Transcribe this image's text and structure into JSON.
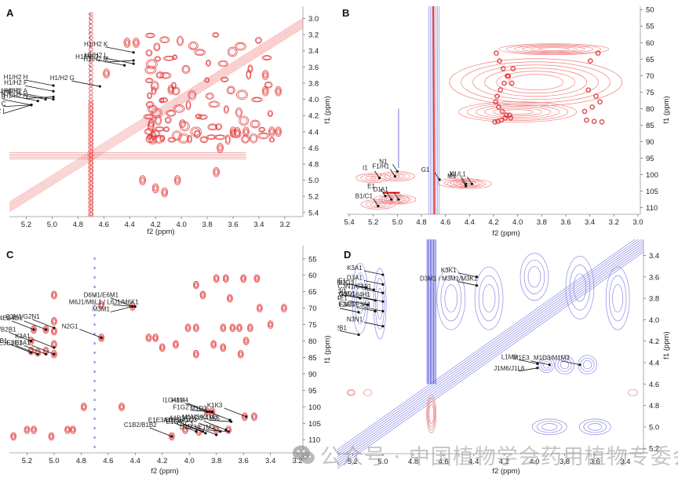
{
  "figure": {
    "panels": [
      {
        "id": "A",
        "label": "A",
        "xlabel": "f2 (ppm)",
        "ylabel": "f1 (ppm)",
        "xticks": [
          "5.2",
          "5.0",
          "4.8",
          "4.6",
          "4.4",
          "4.2",
          "4.0",
          "3.8",
          "3.6",
          "3.4",
          "3.2"
        ],
        "yticks": [
          "3.0",
          "3.2",
          "3.4",
          "3.6",
          "3.8",
          "4.0",
          "4.2",
          "4.4",
          "4.6",
          "4.8",
          "5.0",
          "5.2",
          "5.4"
        ],
        "xrange": [
          5.33,
          3.06
        ],
        "yrange": [
          2.85,
          5.45
        ],
        "annotations": [
          "H1/H2 K",
          "H1/H2 M",
          "H1/H2 L",
          "H1/H2 J",
          "H1/H2 H",
          "H1/H2 D",
          "H1/H2 F",
          "H1/H2 N",
          "H1/H2 E",
          "H1/H2 G",
          "H1/H2 A",
          "H1/H2 B",
          "H1/H2 C",
          "H1/H2  I"
        ]
      },
      {
        "id": "B",
        "label": "B",
        "xlabel": "f2 (ppm)",
        "ylabel": "f1 (ppm)",
        "xticks": [
          "5.4",
          "5.2",
          "5.0",
          "4.8",
          "4.6",
          "4.4",
          "4.2",
          "4.0",
          "3.8",
          "3.6",
          "3.4",
          "3.2",
          "3.0"
        ],
        "yticks": [
          "50",
          "55",
          "60",
          "65",
          "70",
          "75",
          "80",
          "85",
          "90",
          "95",
          "100",
          "105",
          "110"
        ],
        "xrange": [
          5.42,
          2.98
        ],
        "yrange": [
          49,
          112
        ],
        "annotations": [
          "G1",
          "J1",
          "K1/L1",
          "I1",
          "F1/H1",
          "N1",
          "E1",
          "M1",
          "B1/C1",
          "D1",
          "A1"
        ]
      },
      {
        "id": "C",
        "label": "C",
        "xlabel": "f2 (ppm)",
        "ylabel": "f1 (ppm)",
        "xticks": [
          "5.2",
          "5.0",
          "4.8",
          "4.6",
          "4.4",
          "4.2",
          "4.0",
          "3.8",
          "3.6",
          "3.4",
          "3.2"
        ],
        "yticks": [
          "55",
          "60",
          "65",
          "70",
          "75",
          "80",
          "85",
          "90",
          "95",
          "100",
          "105",
          "110"
        ],
        "xrange": [
          5.33,
          3.16
        ],
        "yrange": [
          51,
          114
        ],
        "annotations": [
          "D6M1/E6M1",
          "M6J1/M6L1",
          "L6J1/M6K1",
          "M3M1",
          "G4E1",
          "G4D1",
          "C3N1/G2N1",
          "N2G1",
          "B2C1",
          "B2B1",
          "K3A1",
          "E3B1",
          "E3A1",
          "E3E1",
          "E3D1",
          "I1G4/I1I4",
          "H1I4",
          "F1G2",
          "M1D3",
          "K1K3",
          "A1D3/D1D3/A1K6",
          "M1M3/K1M3",
          "A1E3",
          "A1E3",
          "E1E3",
          "D1E3",
          "C1B2",
          "B1B2",
          "E1G4",
          "C1C3",
          "A1C3",
          "D1M3/E1M3"
        ]
      },
      {
        "id": "D",
        "label": "D",
        "xlabel": "f2 (ppm)",
        "ylabel": "f1 (ppm)",
        "xticks": [
          "5.2",
          "5.0",
          "4.8",
          "4.6",
          "4.4",
          "4.2",
          "4.0",
          "3.8",
          "3.6",
          "3.4"
        ],
        "yticks": [
          "3.4",
          "3.6",
          "3.8",
          "4.0",
          "4.2",
          "4.4",
          "4.6",
          "4.8",
          "5.0",
          "5.2"
        ],
        "xrange": [
          5.3,
          3.28
        ],
        "yrange": [
          3.25,
          5.25
        ],
        "annotations": [
          "M3D3",
          "K3A1",
          "M3E1",
          "D3A1",
          "I1I1",
          "G3I1",
          "C3N1/C3A1",
          "G3D1",
          "G3N1/I4H1",
          "E3B1",
          "E3A1/E3A1",
          "G4E1",
          "E3D1",
          "N3N1",
          "B2C1",
          "B2B1",
          "K3K1",
          "D3M1",
          "M3M1/M3K1",
          "L1M3",
          "M1E3",
          "M1D3/M1M3",
          "J1M6/J1L6"
        ]
      }
    ],
    "watermark": "公众号 · 中国植物学会药用植物专委会"
  },
  "chart_data": [
    {
      "type": "heatmap",
      "title": "A",
      "xlabel": "f2 (ppm)",
      "ylabel": "f1 (ppm)",
      "xlim": [
        5.33,
        3.06
      ],
      "ylim": [
        2.85,
        5.45
      ],
      "contour_colors": {
        "positive": "#e23a3a",
        "negative": "#4a4ad8"
      },
      "peaks": [
        {
          "label": "H1/H2 A",
          "x": 4.99,
          "y": 4.0
        },
        {
          "label": "H1/H2 B",
          "x": 5.16,
          "y": 4.07
        },
        {
          "label": "H1/H2 C",
          "x": 5.16,
          "y": 4.07
        },
        {
          "label": "H1/H2  I",
          "x": 5.16,
          "y": 4.07
        },
        {
          "label": "H1/H2 D",
          "x": 5.05,
          "y": 4.0
        },
        {
          "label": "H1/H2 E",
          "x": 5.11,
          "y": 4.02
        },
        {
          "label": "H1/H2 F",
          "x": 4.99,
          "y": 3.9
        },
        {
          "label": "H1/H2 N",
          "x": 4.99,
          "y": 3.97
        },
        {
          "label": "H1/H2 H",
          "x": 4.99,
          "y": 3.83
        },
        {
          "label": "H1/H2 G",
          "x": 4.63,
          "y": 3.84
        },
        {
          "label": "H1/H2 J",
          "x": 4.44,
          "y": 3.58
        },
        {
          "label": "H1/H2 K",
          "x": 4.37,
          "y": 3.42
        },
        {
          "label": "H1/H2 L",
          "x": 4.37,
          "y": 3.56
        },
        {
          "label": "H1/H2 M",
          "x": 4.37,
          "y": 3.52
        }
      ]
    },
    {
      "type": "heatmap",
      "title": "B",
      "xlabel": "f2 (ppm)",
      "ylabel": "f1 (ppm)",
      "xlim": [
        5.42,
        2.98
      ],
      "ylim": [
        49,
        112
      ],
      "contour_colors": {
        "positive": "#e23a3a",
        "negative": "#4a4ad8"
      },
      "peaks": [
        {
          "label": "A1",
          "x": 4.99,
          "y": 107.5
        },
        {
          "label": "B1/C1",
          "x": 5.16,
          "y": 109.5
        },
        {
          "label": "D1",
          "x": 5.05,
          "y": 107.5
        },
        {
          "label": "E1",
          "x": 5.1,
          "y": 106.5
        },
        {
          "label": "F1/H1",
          "x": 5.02,
          "y": 100.5
        },
        {
          "label": "G1",
          "x": 4.65,
          "y": 101.5
        },
        {
          "label": "I1",
          "x": 5.15,
          "y": 101.0
        },
        {
          "label": "J1",
          "x": 4.43,
          "y": 102.8
        },
        {
          "label": "K1/L1",
          "x": 4.38,
          "y": 102.8
        },
        {
          "label": "M1",
          "x": 4.43,
          "y": 103.5
        },
        {
          "label": "N1",
          "x": 5.0,
          "y": 99.0
        }
      ]
    },
    {
      "type": "heatmap",
      "title": "C",
      "xlabel": "f2 (ppm)",
      "ylabel": "f1 (ppm)",
      "xlim": [
        5.33,
        3.16
      ],
      "ylim": [
        51,
        114
      ],
      "contour_colors": {
        "positive": "#e23a3a",
        "negative": "#4a4ad8"
      },
      "peaks": [
        {
          "label": "D6M1/E6M1",
          "x": 4.42,
          "y": 69.5
        },
        {
          "label": "M6J1/M6L1 / L6J1/M6K1",
          "x": 4.4,
          "y": 69.5
        },
        {
          "label": "M3M1",
          "x": 4.42,
          "y": 69.5
        },
        {
          "label": "G4E1",
          "x": 5.15,
          "y": 76.5
        },
        {
          "label": "G4D1",
          "x": 5.06,
          "y": 76.5
        },
        {
          "label": "C3N1/G2N1",
          "x": 5.0,
          "y": 76.0
        },
        {
          "label": "N2G1",
          "x": 4.65,
          "y": 79.0
        },
        {
          "label": "B2C1/B2B1",
          "x": 5.17,
          "y": 80.0
        },
        {
          "label": "K3A1",
          "x": 5.0,
          "y": 82.0
        },
        {
          "label": "E3B1",
          "x": 5.17,
          "y": 83.5
        },
        {
          "label": "E3E1",
          "x": 5.12,
          "y": 84.0
        },
        {
          "label": "E3D1",
          "x": 5.06,
          "y": 84.0
        },
        {
          "label": "E3A1",
          "x": 5.0,
          "y": 84.0
        },
        {
          "label": "I1G4/I1I4",
          "x": 3.87,
          "y": 101.5
        },
        {
          "label": "H1I4",
          "x": 3.85,
          "y": 101.5
        },
        {
          "label": "F1G2",
          "x": 3.83,
          "y": 101.5
        },
        {
          "label": "M1D3",
          "x": 3.7,
          "y": 104.0
        },
        {
          "label": "K1K3",
          "x": 3.58,
          "y": 103.0
        },
        {
          "label": "A1D3/D1D3/A1K6",
          "x": 3.73,
          "y": 107.0
        },
        {
          "label": "M1M3/K1M3",
          "x": 3.69,
          "y": 104.5
        },
        {
          "label": "A1E3",
          "x": 3.9,
          "y": 107.5
        },
        {
          "label": "E1E3/D1E3",
          "x": 3.95,
          "y": 107.5
        },
        {
          "label": "C1B2/B1B2",
          "x": 4.13,
          "y": 109.0
        },
        {
          "label": "E1G4",
          "x": 3.88,
          "y": 108.0
        },
        {
          "label": "C1C3",
          "x": 3.8,
          "y": 108.5
        },
        {
          "label": "A1C3",
          "x": 3.77,
          "y": 107.5
        },
        {
          "label": "D1M3/E1M3",
          "x": 3.71,
          "y": 107.5
        }
      ]
    },
    {
      "type": "heatmap",
      "title": "D",
      "xlabel": "f2 (ppm)",
      "ylabel": "f1 (ppm)",
      "xlim": [
        5.3,
        3.28
      ],
      "ylim": [
        3.25,
        5.25
      ],
      "contour_colors": {
        "positive": "#e23a3a",
        "negative": "#4a4ad8"
      },
      "peaks": [
        {
          "label": "M3D3",
          "x": 5.06,
          "y": 3.72
        },
        {
          "label": "K3A1",
          "x": 5.0,
          "y": 3.58
        },
        {
          "label": "M3E1",
          "x": 5.11,
          "y": 3.7
        },
        {
          "label": "D3A1",
          "x": 5.0,
          "y": 3.67
        },
        {
          "label": "I1I1 / G3I1",
          "x": 5.15,
          "y": 3.8
        },
        {
          "label": "C3N1/C3A1",
          "x": 5.0,
          "y": 3.75
        },
        {
          "label": "G3D1",
          "x": 5.05,
          "y": 3.82
        },
        {
          "label": "G3N1/I4H1",
          "x": 5.0,
          "y": 3.83
        },
        {
          "label": "E3B1",
          "x": 5.16,
          "y": 3.93
        },
        {
          "label": "E3A1/E3A1",
          "x": 5.0,
          "y": 3.92
        },
        {
          "label": "G4E1",
          "x": 5.1,
          "y": 3.86
        },
        {
          "label": "E3D1",
          "x": 5.05,
          "y": 3.92
        },
        {
          "label": "N3N1",
          "x": 5.0,
          "y": 4.06
        },
        {
          "label": "B2C1/B2B1",
          "x": 5.16,
          "y": 4.14
        },
        {
          "label": "K3K1",
          "x": 4.38,
          "y": 3.6
        },
        {
          "label": "D3M1 / M3M1/M3K1",
          "x": 4.38,
          "y": 3.68
        },
        {
          "label": "L1M3",
          "x": 3.98,
          "y": 4.41
        },
        {
          "label": "M1E3",
          "x": 3.9,
          "y": 4.42
        },
        {
          "label": "M1D3/M1M3",
          "x": 3.7,
          "y": 4.42
        },
        {
          "label": "J1M6/J1L6",
          "x": 3.98,
          "y": 4.45
        }
      ]
    }
  ]
}
